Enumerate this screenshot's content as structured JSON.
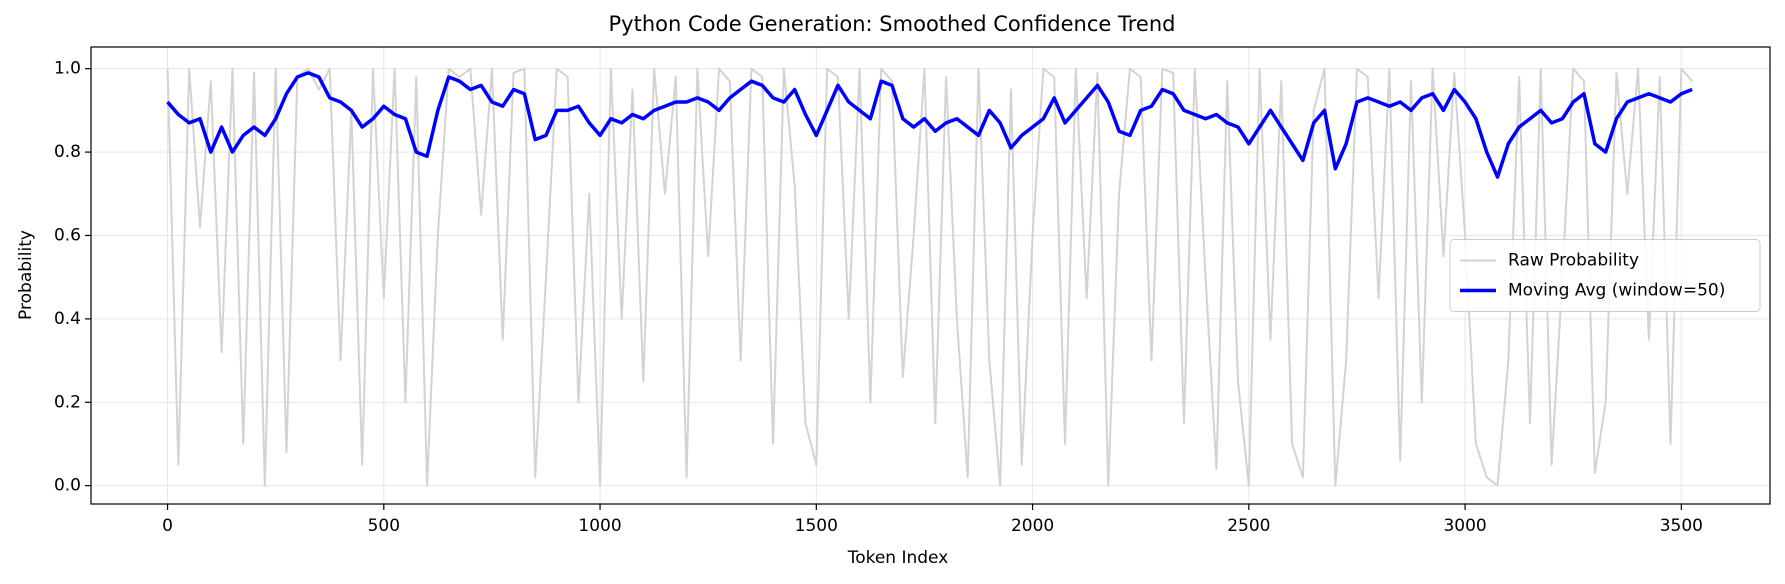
{
  "chart_data": {
    "type": "line",
    "title": "Python Code Generation: Smoothed Confidence Trend",
    "x_label": "Token Index",
    "y_label": "Probability",
    "x": [
      0,
      25,
      50,
      75,
      100,
      125,
      150,
      175,
      200,
      225,
      250,
      275,
      300,
      325,
      350,
      375,
      400,
      425,
      450,
      475,
      500,
      525,
      550,
      575,
      600,
      625,
      650,
      675,
      700,
      725,
      750,
      775,
      800,
      825,
      850,
      875,
      900,
      925,
      950,
      975,
      1000,
      1025,
      1050,
      1075,
      1100,
      1125,
      1150,
      1175,
      1200,
      1225,
      1250,
      1275,
      1300,
      1325,
      1350,
      1375,
      1400,
      1425,
      1450,
      1475,
      1500,
      1525,
      1550,
      1575,
      1600,
      1625,
      1650,
      1675,
      1700,
      1725,
      1750,
      1775,
      1800,
      1825,
      1850,
      1875,
      1900,
      1925,
      1950,
      1975,
      2000,
      2025,
      2050,
      2075,
      2100,
      2125,
      2150,
      2175,
      2200,
      2225,
      2250,
      2275,
      2300,
      2325,
      2350,
      2375,
      2400,
      2425,
      2450,
      2475,
      2500,
      2525,
      2550,
      2575,
      2600,
      2625,
      2650,
      2675,
      2700,
      2725,
      2750,
      2775,
      2800,
      2825,
      2850,
      2875,
      2900,
      2925,
      2950,
      2975,
      3000,
      3025,
      3050,
      3075,
      3100,
      3125,
      3150,
      3175,
      3200,
      3225,
      3250,
      3275,
      3300,
      3325,
      3350,
      3375,
      3400,
      3425,
      3450,
      3475,
      3500,
      3525
    ],
    "series": [
      {
        "name": "Raw Probability",
        "color": "#d3d3d3",
        "line_width": 2,
        "values": [
          1.0,
          0.05,
          1.0,
          0.62,
          0.97,
          0.32,
          1.0,
          0.1,
          0.99,
          0.0,
          1.0,
          0.08,
          0.98,
          1.0,
          0.95,
          1.0,
          0.3,
          0.9,
          0.05,
          1.0,
          0.45,
          1.0,
          0.2,
          0.98,
          0.0,
          0.6,
          1.0,
          0.98,
          1.0,
          0.65,
          1.0,
          0.35,
          0.99,
          1.0,
          0.02,
          0.5,
          1.0,
          0.98,
          0.2,
          0.7,
          0.0,
          1.0,
          0.4,
          0.95,
          0.25,
          1.0,
          0.7,
          0.98,
          0.02,
          1.0,
          0.55,
          1.0,
          0.97,
          0.3,
          1.0,
          0.98,
          0.1,
          1.0,
          0.72,
          0.15,
          0.05,
          1.0,
          0.98,
          0.4,
          1.0,
          0.2,
          1.0,
          0.97,
          0.26,
          0.6,
          1.0,
          0.15,
          0.98,
          0.4,
          0.02,
          1.0,
          0.3,
          0.0,
          0.95,
          0.05,
          0.6,
          1.0,
          0.98,
          0.1,
          1.0,
          0.45,
          0.99,
          0.0,
          0.7,
          1.0,
          0.98,
          0.3,
          1.0,
          0.99,
          0.15,
          1.0,
          0.5,
          0.04,
          0.97,
          0.25,
          0.0,
          1.0,
          0.35,
          0.97,
          0.1,
          0.02,
          0.9,
          1.0,
          0.0,
          0.3,
          1.0,
          0.98,
          0.45,
          1.0,
          0.06,
          0.97,
          0.2,
          1.0,
          0.55,
          0.99,
          0.6,
          0.1,
          0.02,
          0.0,
          0.3,
          0.98,
          0.15,
          1.0,
          0.05,
          0.5,
          1.0,
          0.97,
          0.03,
          0.2,
          0.99,
          0.7,
          1.0,
          0.35,
          0.98,
          0.1,
          1.0,
          0.97
        ]
      },
      {
        "name": "Moving Avg (window=50)",
        "color": "#0000ff",
        "line_width": 3.5,
        "values": [
          0.92,
          0.89,
          0.87,
          0.88,
          0.8,
          0.86,
          0.8,
          0.84,
          0.86,
          0.84,
          0.88,
          0.94,
          0.98,
          0.99,
          0.98,
          0.93,
          0.92,
          0.9,
          0.86,
          0.88,
          0.91,
          0.89,
          0.88,
          0.8,
          0.79,
          0.9,
          0.98,
          0.97,
          0.95,
          0.96,
          0.92,
          0.91,
          0.95,
          0.94,
          0.83,
          0.84,
          0.9,
          0.9,
          0.91,
          0.87,
          0.84,
          0.88,
          0.87,
          0.89,
          0.88,
          0.9,
          0.91,
          0.92,
          0.92,
          0.93,
          0.92,
          0.9,
          0.93,
          0.95,
          0.97,
          0.96,
          0.93,
          0.92,
          0.95,
          0.89,
          0.84,
          0.9,
          0.96,
          0.92,
          0.9,
          0.88,
          0.97,
          0.96,
          0.88,
          0.86,
          0.88,
          0.85,
          0.87,
          0.88,
          0.86,
          0.84,
          0.9,
          0.87,
          0.81,
          0.84,
          0.86,
          0.88,
          0.93,
          0.87,
          0.9,
          0.93,
          0.96,
          0.92,
          0.85,
          0.84,
          0.9,
          0.91,
          0.95,
          0.94,
          0.9,
          0.89,
          0.88,
          0.89,
          0.87,
          0.86,
          0.82,
          0.86,
          0.9,
          0.86,
          0.82,
          0.78,
          0.87,
          0.9,
          0.76,
          0.82,
          0.92,
          0.93,
          0.92,
          0.91,
          0.92,
          0.9,
          0.93,
          0.94,
          0.9,
          0.95,
          0.92,
          0.88,
          0.8,
          0.74,
          0.82,
          0.86,
          0.88,
          0.9,
          0.87,
          0.88,
          0.92,
          0.94,
          0.82,
          0.8,
          0.88,
          0.92,
          0.93,
          0.94,
          0.93,
          0.92,
          0.94,
          0.95
        ]
      }
    ],
    "xlim": [
      -177,
      3705
    ],
    "ylim": [
      -0.044,
      1.052
    ],
    "xticks": [
      0,
      500,
      1000,
      1500,
      2000,
      2500,
      3000,
      3500
    ],
    "yticks": [
      {
        "value": 0,
        "label": "0.0"
      },
      0.2,
      0.4,
      0.6,
      0.8,
      {
        "value": 1,
        "label": "1.0"
      }
    ],
    "grid": true,
    "legend": "center right"
  }
}
